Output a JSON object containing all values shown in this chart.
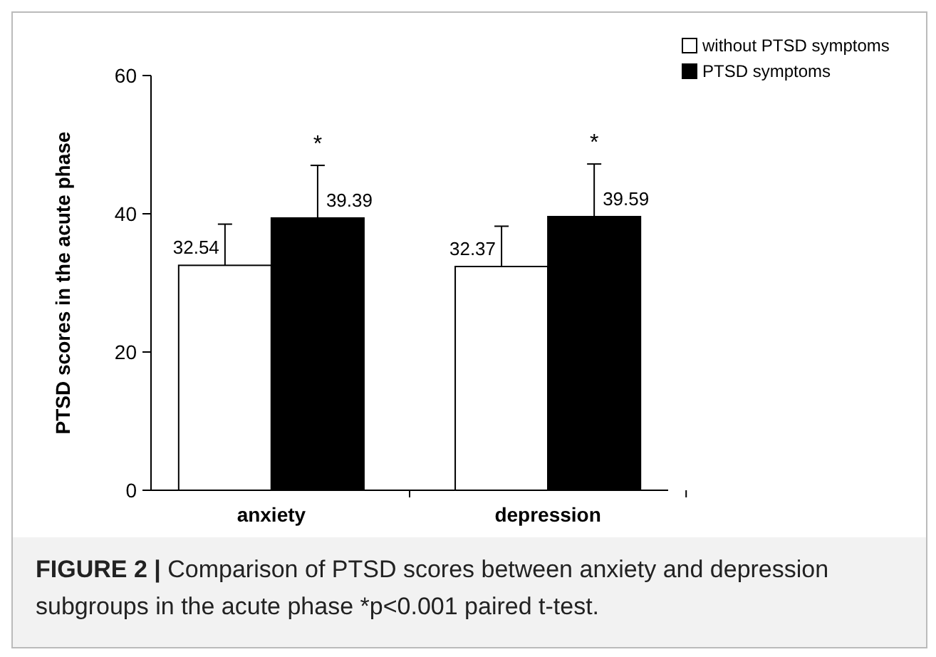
{
  "chart_data": {
    "type": "bar",
    "ylabel": "PTSD scores in the acute phase",
    "categories": [
      "anxiety",
      "depression"
    ],
    "series": [
      {
        "name": "without PTSD symptoms",
        "color": "#ffffff",
        "values": [
          32.54,
          32.37
        ],
        "errors": [
          [
            32.54,
            38.5
          ],
          [
            32.37,
            38.2
          ]
        ]
      },
      {
        "name": "PTSD symptoms",
        "color": "#000000",
        "values": [
          39.39,
          39.59
        ],
        "errors": [
          [
            39.39,
            47.0
          ],
          [
            39.59,
            47.2
          ]
        ]
      }
    ],
    "ylim": [
      0,
      60
    ],
    "yticks": [
      0,
      20,
      40,
      60
    ],
    "grid": false,
    "legend": "top right",
    "data_labels": true,
    "annotations": [
      "*",
      "*",
      "FIGURE 2 | Comparison of PTSD scores between anxiety and depression subgroups in the acute phase *p<0.001 paired t-test."
    ]
  }
}
